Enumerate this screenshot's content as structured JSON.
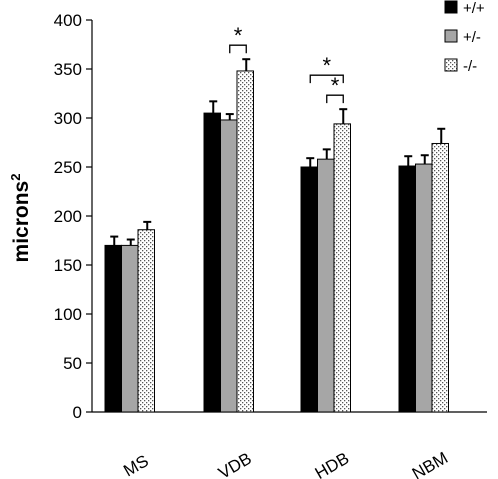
{
  "chart_data": {
    "type": "bar",
    "categories": [
      "MS",
      "VDB",
      "HDB",
      "NBM"
    ],
    "series": [
      {
        "name": "+/+",
        "values": [
          170,
          305,
          250,
          251
        ],
        "errors": [
          9,
          12,
          9,
          10
        ]
      },
      {
        "name": "+/-",
        "values": [
          170,
          298,
          258,
          253
        ],
        "errors": [
          6,
          6,
          10,
          9
        ]
      },
      {
        "name": "-/-",
        "values": [
          186,
          348,
          294,
          274
        ],
        "errors": [
          8,
          12,
          15,
          15
        ]
      }
    ],
    "series_styles": [
      {
        "pattern": "solid",
        "fill": "#000000"
      },
      {
        "pattern": "solid",
        "fill": "#a6a6a6"
      },
      {
        "pattern": "dots",
        "fill": "#ffffff"
      }
    ],
    "title": "",
    "xlabel": "",
    "ylabel": "microns",
    "ylabel_superscript": "2",
    "ylim": [
      0,
      400
    ],
    "yticks": [
      0,
      50,
      100,
      150,
      200,
      250,
      300,
      350,
      400
    ],
    "grid": false,
    "legend_position": "top-right",
    "significance": [
      {
        "category": 1,
        "from_series": 1,
        "to_series": 2,
        "label": "*"
      },
      {
        "category": 2,
        "from_series": 1,
        "to_series": 2,
        "label": "*"
      },
      {
        "category": 2,
        "from_series": 0,
        "to_series": 2,
        "label": "*"
      }
    ]
  }
}
